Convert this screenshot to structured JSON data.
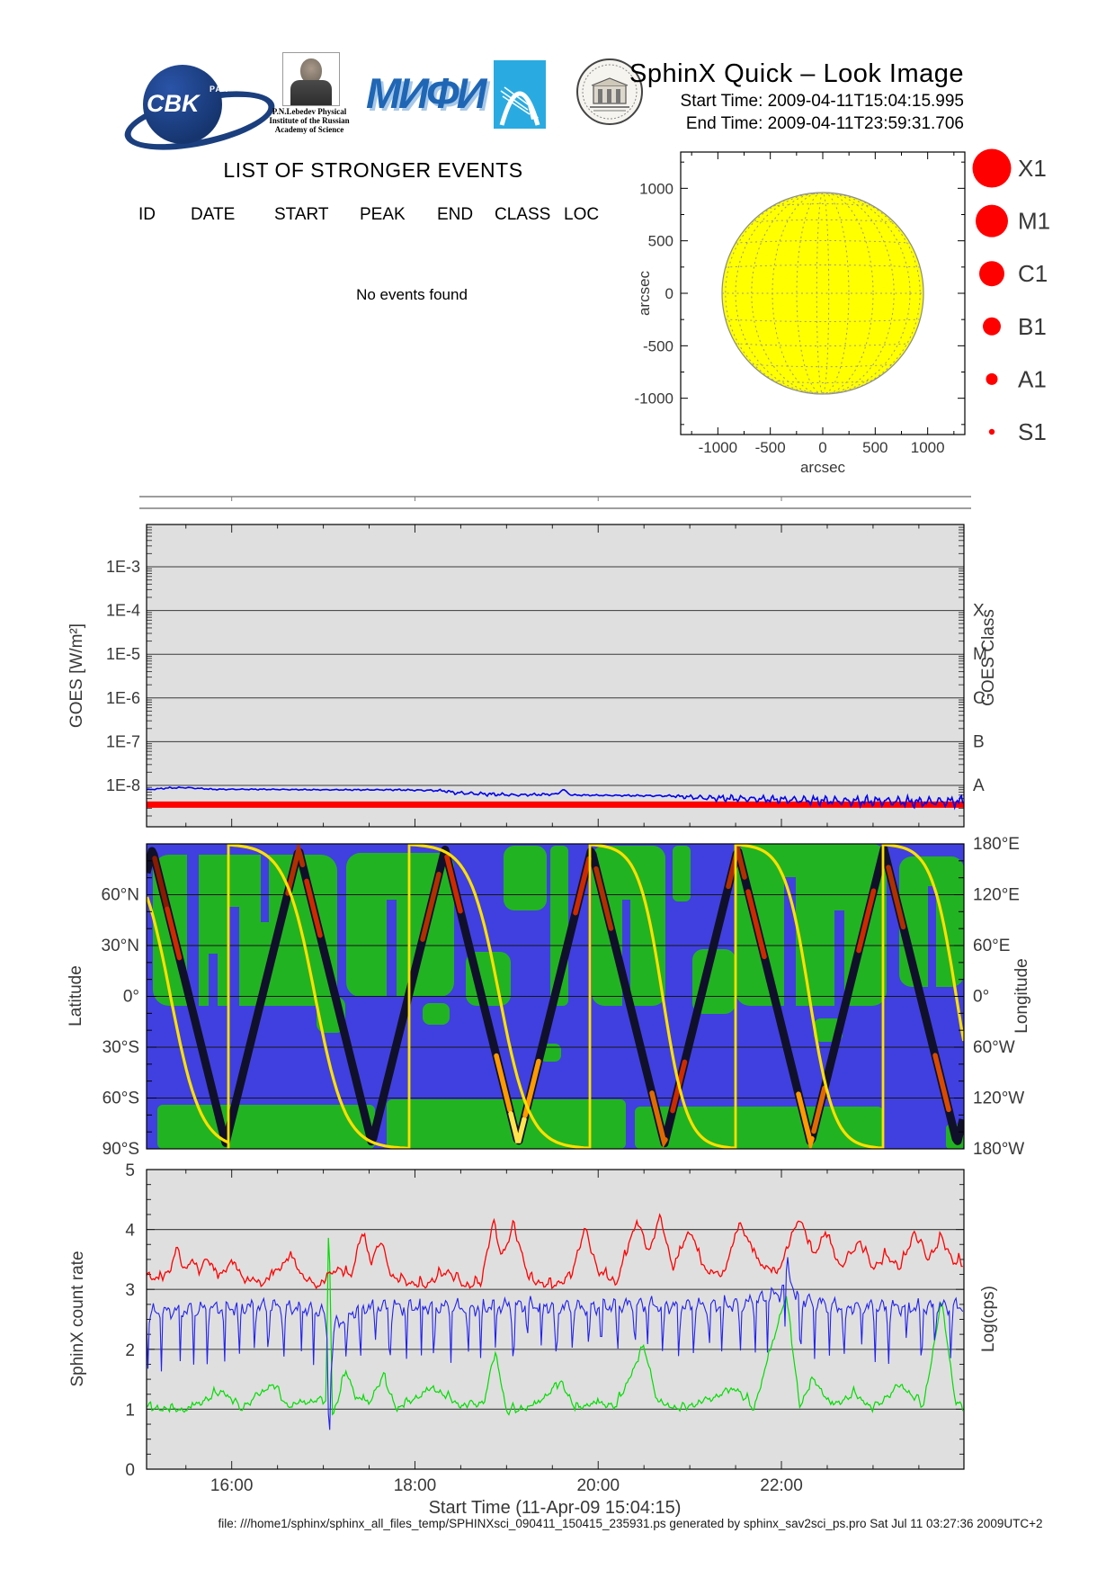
{
  "header": {
    "title": "SphinX Quick – Look Image",
    "start_time": "Start Time: 2009-04-11T15:04:15.995",
    "end_time": "End Time: 2009-04-11T23:59:31.706",
    "logos": {
      "cbk_text": "CBK",
      "cbk_sub": "PAN",
      "lebedev_caption_1": "P.N.Lebedev Physical",
      "lebedev_caption_2": "Institute of the Russian",
      "lebedev_caption_3": "Academy of Science",
      "mephi_text": "МИФИ"
    }
  },
  "events_panel": {
    "title": "LIST OF STRONGER EVENTS",
    "columns": [
      "ID",
      "DATE",
      "START",
      "PEAK",
      "END",
      "CLASS",
      "LOC"
    ],
    "empty_message": "No events found"
  },
  "flare_legend": {
    "color": "#ff0000",
    "items": [
      {
        "label": "X1",
        "radius": 21.5
      },
      {
        "label": "M1",
        "radius": 18
      },
      {
        "label": "C1",
        "radius": 14
      },
      {
        "label": "B1",
        "radius": 10
      },
      {
        "label": "A1",
        "radius": 6.5
      },
      {
        "label": "S1",
        "radius": 3.2
      }
    ]
  },
  "footer": {
    "text": "file: ///home1/sphinx/sphinx_all_files_temp/SPHINXsci_090411_150415_235931.ps generated by sphinx_sav2sci_ps.pro Sat Jul 11 03:27:36 2009UTC+2"
  },
  "chart_data": [
    {
      "id": "solar_disk",
      "type": "scatter",
      "xlabel": "arcsec",
      "ylabel": "arcsec",
      "xticks": [
        -1000,
        -500,
        0,
        500,
        1000
      ],
      "yticks": [
        1000,
        500,
        0,
        -500,
        -1000
      ],
      "xlim": [
        -1355,
        1345
      ],
      "ylim": [
        -1345,
        1345
      ],
      "sun_radius_arcsec": 960,
      "disk_color": "#ffff00",
      "grid_color": "#999999",
      "events": []
    },
    {
      "id": "goes_flux",
      "type": "line",
      "ylabel": "GOES [W/m²]",
      "right_axis_label": "GOES Class",
      "ytick_labels": [
        "1E-3",
        "1E-4",
        "1E-5",
        "1E-6",
        "1E-7",
        "1E-8"
      ],
      "ytick_exponents": [
        -3,
        -4,
        -5,
        -6,
        -7,
        -8
      ],
      "right_tick_labels": [
        "X",
        "M",
        "C",
        "B",
        "A"
      ],
      "right_tick_exponents": [
        -4,
        -5,
        -6,
        -7,
        -8
      ],
      "time_range_hours": [
        15.0708,
        23.992
      ],
      "grid": true,
      "series": [
        {
          "name": "goes-long-channel",
          "color": "#0000ee",
          "linewidth": 1.6,
          "points": [
            [
              15.07,
              -8.1,
              0.015
            ],
            [
              15.3,
              -8.06,
              0.02
            ],
            [
              15.5,
              -8.05,
              0.02
            ],
            [
              15.8,
              -8.09,
              0.015
            ],
            [
              16.3,
              -8.09,
              0.015
            ],
            [
              17.0,
              -8.1,
              0.015
            ],
            [
              17.8,
              -8.1,
              0.02
            ],
            [
              18.3,
              -8.12,
              0.03
            ],
            [
              18.45,
              -8.17,
              0.05
            ],
            [
              18.8,
              -8.2,
              0.05
            ],
            [
              19.1,
              -8.22,
              0.04
            ],
            [
              19.55,
              -8.2,
              0.03
            ],
            [
              19.62,
              -8.09,
              0.01
            ],
            [
              19.7,
              -8.22,
              0.02
            ],
            [
              20.2,
              -8.23,
              0.02
            ],
            [
              20.8,
              -8.24,
              0.03
            ],
            [
              21.1,
              -8.28,
              0.08
            ],
            [
              21.5,
              -8.3,
              0.1
            ],
            [
              21.9,
              -8.32,
              0.1
            ],
            [
              22.3,
              -8.34,
              0.13
            ],
            [
              22.7,
              -8.36,
              0.14
            ],
            [
              23.1,
              -8.36,
              0.15
            ],
            [
              23.5,
              -8.38,
              0.15
            ],
            [
              23.99,
              -8.36,
              0.15
            ]
          ]
        },
        {
          "name": "goes-short-channel",
          "color": "#ff0000",
          "linewidth": 7,
          "constant_log10": -8.44
        }
      ]
    },
    {
      "id": "ground_track",
      "type": "line",
      "left_axis_label": "Latitude",
      "right_axis_label": "Longitude",
      "lat_tick_labels": [
        "60°N",
        "30°N",
        "0°",
        "30°S",
        "60°S",
        "90°S"
      ],
      "lon_tick_labels": [
        "180°E",
        "120°E",
        "60°E",
        "0°",
        "60°W",
        "120°W",
        "180°W"
      ],
      "ocean_color": "#4040e0",
      "land_color": "#22b322",
      "track_color": "#10102a",
      "orbit_color": "#ffe000",
      "track_wave": {
        "first_peak_x": 169.5,
        "period": 162.7,
        "top_y": 944,
        "bottom_y": 1271
      },
      "wrap_lines_x": [
        254,
        455,
        656,
        818,
        982
      ],
      "orbit_segments": [
        [
          53,
          254,
          0.68,
          6
        ],
        [
          254,
          455,
          0.48,
          6
        ],
        [
          455,
          656,
          0.5,
          6
        ],
        [
          656,
          818,
          0.5,
          6
        ],
        [
          818,
          982,
          0.5,
          6
        ],
        [
          982,
          1145,
          0.5,
          6
        ]
      ],
      "hotspots": [
        [
          172,
          186,
          "#8a1a00"
        ],
        [
          186,
          200,
          "#cc2a00"
        ],
        [
          320,
          337,
          "#b03000"
        ],
        [
          341,
          356,
          "#cc2a00"
        ],
        [
          470,
          488,
          "#b03000"
        ],
        [
          497,
          512,
          "#cc2a00"
        ],
        [
          552,
          568,
          "#ff9a00"
        ],
        [
          568,
          584,
          "#ffe44d"
        ],
        [
          584,
          600,
          "#ff9a00"
        ],
        [
          640,
          655,
          "#cc2a00"
        ],
        [
          663,
          680,
          "#b03000"
        ],
        [
          725,
          740,
          "#e06a00"
        ],
        [
          748,
          762,
          "#cc2a00"
        ],
        [
          810,
          828,
          "#b03000"
        ],
        [
          832,
          850,
          "#cc2a00"
        ],
        [
          888,
          903,
          "#ff9a00"
        ],
        [
          905,
          918,
          "#e06a00"
        ],
        [
          955,
          972,
          "#cc2a00"
        ],
        [
          988,
          1005,
          "#b03000"
        ],
        [
          1040,
          1056,
          "#d94a00"
        ]
      ],
      "land": [
        [
          170,
          950,
          205,
          168,
          18
        ],
        [
          385,
          948,
          120,
          160,
          16
        ],
        [
          352,
          1108,
          32,
          40,
          10
        ],
        [
          518,
          1058,
          50,
          60,
          12
        ],
        [
          560,
          940,
          48,
          72,
          12
        ],
        [
          612,
          940,
          20,
          178,
          6
        ],
        [
          658,
          940,
          82,
          178,
          14
        ],
        [
          748,
          940,
          20,
          62,
          6
        ],
        [
          770,
          1055,
          48,
          72,
          12
        ],
        [
          818,
          938,
          168,
          180,
          16
        ],
        [
          1000,
          952,
          72,
          145,
          14
        ],
        [
          470,
          1115,
          30,
          24,
          8
        ],
        [
          905,
          1132,
          32,
          26,
          8
        ],
        [
          600,
          1160,
          24,
          20,
          7
        ],
        [
          175,
          1228,
          242,
          49,
          6
        ],
        [
          430,
          1222,
          266,
          55,
          6
        ],
        [
          706,
          1230,
          276,
          47,
          6
        ],
        [
          1052,
          1250,
          20,
          27,
          4
        ]
      ],
      "ocean_streaks": [
        [
          208,
          950,
          13,
          168
        ],
        [
          255,
          1008,
          11,
          110
        ],
        [
          290,
          950,
          9,
          75
        ],
        [
          232,
          1060,
          10,
          58
        ],
        [
          430,
          1000,
          11,
          108
        ],
        [
          692,
          1000,
          9,
          118
        ],
        [
          872,
          975,
          13,
          143
        ],
        [
          928,
          1012,
          11,
          106
        ],
        [
          1032,
          985,
          9,
          112
        ]
      ]
    },
    {
      "id": "sphinx_count_rate",
      "type": "line",
      "xlabel": "Start Time (11-Apr-09 15:04:15)",
      "ylabel": "SphinX count rate",
      "right_axis_label": "Log(cps)",
      "ylim": [
        0,
        5
      ],
      "yticks": [
        0,
        1,
        2,
        3,
        4,
        5
      ],
      "xtick_labels": [
        "16:00",
        "18:00",
        "20:00",
        "22:00"
      ],
      "xtick_hours": [
        16,
        18,
        20,
        22
      ],
      "time_range_hours": [
        15.0708,
        23.992
      ],
      "series": [
        {
          "name": "detector-red",
          "color": "#ff0000",
          "linewidth": 1.3,
          "noise": 0.07,
          "points": [
            [
              15.07,
              3.25
            ],
            [
              15.2,
              3.15
            ],
            [
              15.32,
              3.3
            ],
            [
              15.4,
              3.68
            ],
            [
              15.48,
              3.3
            ],
            [
              15.56,
              3.5
            ],
            [
              15.65,
              3.25
            ],
            [
              15.72,
              3.55
            ],
            [
              15.85,
              3.2
            ],
            [
              16.0,
              3.45
            ],
            [
              16.15,
              3.15
            ],
            [
              16.35,
              3.1
            ],
            [
              16.65,
              3.55
            ],
            [
              16.8,
              3.15
            ],
            [
              16.95,
              3.05
            ],
            [
              17.15,
              3.35
            ],
            [
              17.3,
              3.2
            ],
            [
              17.42,
              3.95
            ],
            [
              17.52,
              3.45
            ],
            [
              17.62,
              3.8
            ],
            [
              17.75,
              3.2
            ],
            [
              17.95,
              3.1
            ],
            [
              18.1,
              3.05
            ],
            [
              18.35,
              3.3
            ],
            [
              18.55,
              3.05
            ],
            [
              18.72,
              3.1
            ],
            [
              18.85,
              4.1
            ],
            [
              18.95,
              3.55
            ],
            [
              19.08,
              4.05
            ],
            [
              19.25,
              3.15
            ],
            [
              19.5,
              3.05
            ],
            [
              19.7,
              3.2
            ],
            [
              19.85,
              4.0
            ],
            [
              20.0,
              3.3
            ],
            [
              20.2,
              3.1
            ],
            [
              20.42,
              4.15
            ],
            [
              20.55,
              3.6
            ],
            [
              20.67,
              4.2
            ],
            [
              20.82,
              3.35
            ],
            [
              21.0,
              4.0
            ],
            [
              21.15,
              3.35
            ],
            [
              21.35,
              3.2
            ],
            [
              21.55,
              4.1
            ],
            [
              21.75,
              3.45
            ],
            [
              21.95,
              3.25
            ],
            [
              22.2,
              4.2
            ],
            [
              22.35,
              3.55
            ],
            [
              22.48,
              3.95
            ],
            [
              22.65,
              3.35
            ],
            [
              22.85,
              3.8
            ],
            [
              23.0,
              3.35
            ],
            [
              23.15,
              3.55
            ],
            [
              23.3,
              3.35
            ],
            [
              23.45,
              3.95
            ],
            [
              23.6,
              3.5
            ],
            [
              23.75,
              3.85
            ],
            [
              23.88,
              3.45
            ],
            [
              23.99,
              3.4
            ]
          ]
        },
        {
          "name": "detector-blue",
          "color": "#2222ee",
          "linewidth": 1.1,
          "noise": 0.16,
          "downspike": 0.9,
          "points": [
            [
              15.07,
              2.6
            ],
            [
              15.4,
              2.65
            ],
            [
              16.0,
              2.7
            ],
            [
              16.5,
              2.72
            ],
            [
              17.0,
              2.65
            ],
            [
              17.04,
              2.2
            ],
            [
              17.07,
              1.25
            ],
            [
              17.12,
              2.4
            ],
            [
              17.4,
              2.7
            ],
            [
              18.0,
              2.72
            ],
            [
              18.6,
              2.7
            ],
            [
              19.2,
              2.74
            ],
            [
              19.8,
              2.7
            ],
            [
              20.4,
              2.75
            ],
            [
              21.0,
              2.72
            ],
            [
              21.6,
              2.76
            ],
            [
              22.0,
              2.95
            ],
            [
              22.07,
              3.45
            ],
            [
              22.15,
              2.85
            ],
            [
              22.6,
              2.72
            ],
            [
              23.2,
              2.7
            ],
            [
              23.99,
              2.72
            ]
          ]
        },
        {
          "name": "detector-green",
          "color": "#00dd00",
          "linewidth": 1.2,
          "noise": 0.06,
          "points": [
            [
              15.07,
              1.02
            ],
            [
              15.5,
              0.98
            ],
            [
              15.9,
              1.3
            ],
            [
              16.1,
              1.0
            ],
            [
              16.45,
              1.42
            ],
            [
              16.6,
              1.05
            ],
            [
              16.95,
              1.15
            ],
            [
              17.03,
              1.1
            ],
            [
              17.06,
              4.35
            ],
            [
              17.1,
              0.85
            ],
            [
              17.25,
              1.65
            ],
            [
              17.35,
              1.2
            ],
            [
              17.5,
              1.1
            ],
            [
              17.65,
              1.55
            ],
            [
              17.8,
              1.0
            ],
            [
              18.2,
              1.35
            ],
            [
              18.5,
              1.05
            ],
            [
              18.75,
              1.1
            ],
            [
              18.88,
              1.95
            ],
            [
              19.0,
              0.95
            ],
            [
              19.3,
              1.05
            ],
            [
              19.6,
              1.45
            ],
            [
              19.75,
              1.0
            ],
            [
              19.95,
              1.1
            ],
            [
              20.2,
              1.05
            ],
            [
              20.5,
              2.05
            ],
            [
              20.65,
              1.1
            ],
            [
              20.9,
              1.0
            ],
            [
              21.2,
              1.15
            ],
            [
              21.5,
              1.35
            ],
            [
              21.7,
              1.0
            ],
            [
              22.05,
              2.9
            ],
            [
              22.2,
              1.05
            ],
            [
              22.35,
              1.5
            ],
            [
              22.55,
              1.05
            ],
            [
              22.8,
              1.25
            ],
            [
              23.0,
              1.0
            ],
            [
              23.3,
              1.4
            ],
            [
              23.55,
              1.05
            ],
            [
              23.75,
              2.8
            ],
            [
              23.9,
              1.1
            ],
            [
              23.99,
              1.0
            ]
          ]
        }
      ]
    }
  ]
}
